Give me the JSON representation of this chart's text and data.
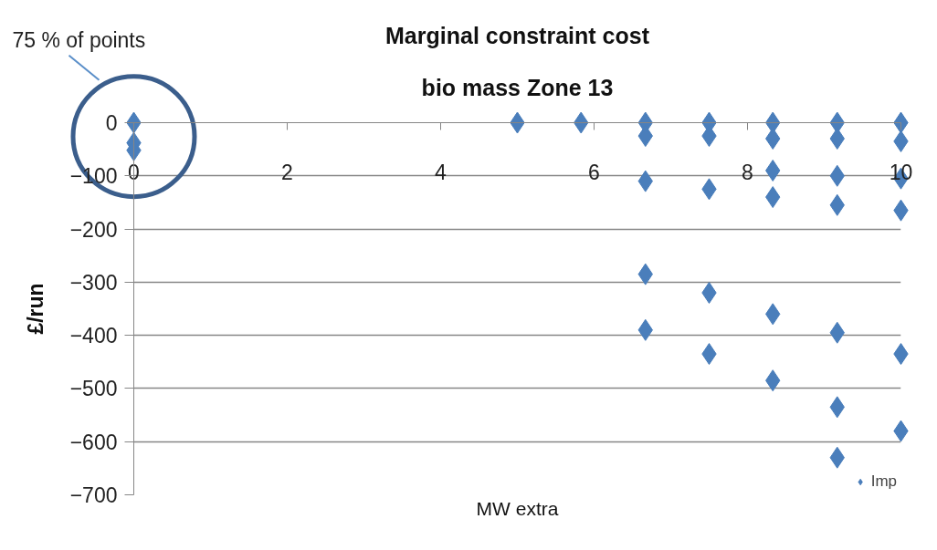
{
  "chart_data": {
    "type": "scatter",
    "title": "Marginal constraint cost",
    "subtitle": "bio mass Zone 13",
    "xlabel": "MW extra",
    "ylabel": "£/run",
    "annotations": [
      "75 % of points"
    ],
    "x": [
      0,
      0,
      0,
      5,
      5.83,
      6.67,
      6.67,
      6.67,
      6.67,
      6.67,
      7.5,
      7.5,
      7.5,
      7.5,
      7.5,
      8.33,
      8.33,
      8.33,
      8.33,
      8.33,
      8.33,
      9.17,
      9.17,
      9.17,
      9.17,
      9.17,
      9.17,
      9.17,
      10,
      10,
      10,
      10,
      10,
      10
    ],
    "series": [
      {
        "name": "Imp",
        "color": "#4a7ebb",
        "values": [
          0,
          -38,
          -52,
          0,
          0,
          0,
          -25,
          -110,
          -285,
          -390,
          0,
          -25,
          -125,
          -320,
          -435,
          0,
          -30,
          -90,
          -140,
          -360,
          -485,
          0,
          -30,
          -100,
          -155,
          -395,
          -535,
          -630,
          0,
          -35,
          -105,
          -165,
          -435,
          -580
        ]
      }
    ],
    "xlim": [
      0,
      10
    ],
    "ylim": [
      -700,
      0
    ],
    "xticks": [
      0,
      2,
      4,
      6,
      8,
      10
    ],
    "yticks": [
      -700,
      -600,
      -500,
      -400,
      -300,
      -200,
      -100,
      0
    ],
    "grid": "y",
    "legend": "bottom right",
    "marker": "diamond"
  }
}
